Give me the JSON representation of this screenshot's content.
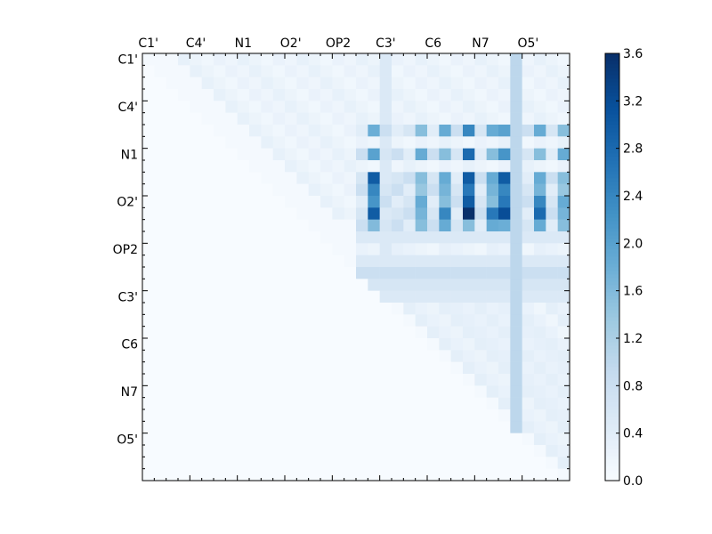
{
  "chart_data": {
    "type": "heatmap",
    "n": 36,
    "labels": [
      "C1'",
      "C4'",
      "N1",
      "O2'",
      "OP2",
      "C3'",
      "C6",
      "N7",
      "O5'"
    ],
    "label_step": 4,
    "vmin": 0.0,
    "vmax": 3.6,
    "colormap": "Blues",
    "colorbar": {
      "ticks": [
        0.0,
        0.4,
        0.8,
        1.2,
        1.6,
        2.0,
        2.4,
        2.8,
        3.2,
        3.6
      ],
      "tick_labels": [
        "0.0",
        "0.4",
        "0.8",
        "1.2",
        "1.6",
        "2.0",
        "2.4",
        "2.8",
        "3.2",
        "3.6"
      ]
    },
    "x_tick_position": "top",
    "upper_triangular": true,
    "cells": {
      "high_rows": [
        6,
        8,
        10,
        11,
        12,
        13,
        14
      ],
      "high_cols": [
        19,
        23,
        25,
        27,
        29,
        30,
        33,
        35
      ],
      "peak": [
        13,
        27,
        3.6
      ],
      "strong": [
        [
          10,
          19,
          3.0
        ],
        [
          13,
          19,
          3.0
        ],
        [
          10,
          30,
          3.0
        ],
        [
          13,
          30,
          3.2
        ],
        [
          12,
          27,
          3.0
        ],
        [
          10,
          27,
          3.0
        ],
        [
          13,
          33,
          2.8
        ],
        [
          12,
          33,
          2.4
        ],
        [
          8,
          27,
          2.8
        ],
        [
          6,
          27,
          2.4
        ],
        [
          11,
          27,
          2.6
        ],
        [
          11,
          19,
          2.4
        ],
        [
          12,
          19,
          2.2
        ],
        [
          13,
          29,
          2.6
        ],
        [
          13,
          25,
          2.4
        ],
        [
          6,
          19,
          1.8
        ],
        [
          8,
          19,
          2.0
        ],
        [
          14,
          19,
          1.6
        ],
        [
          14,
          30,
          1.8
        ],
        [
          12,
          30,
          2.6
        ],
        [
          11,
          30,
          2.4
        ],
        [
          8,
          30,
          2.2
        ],
        [
          6,
          30,
          2.0
        ]
      ],
      "column_stripes": [
        [
          31,
          1.0
        ],
        [
          20,
          0.5
        ]
      ],
      "row_stripes": [
        [
          15,
          0.5
        ],
        [
          17,
          0.5
        ],
        [
          18,
          0.8
        ],
        [
          19,
          0.6
        ],
        [
          20,
          0.5
        ]
      ]
    }
  }
}
